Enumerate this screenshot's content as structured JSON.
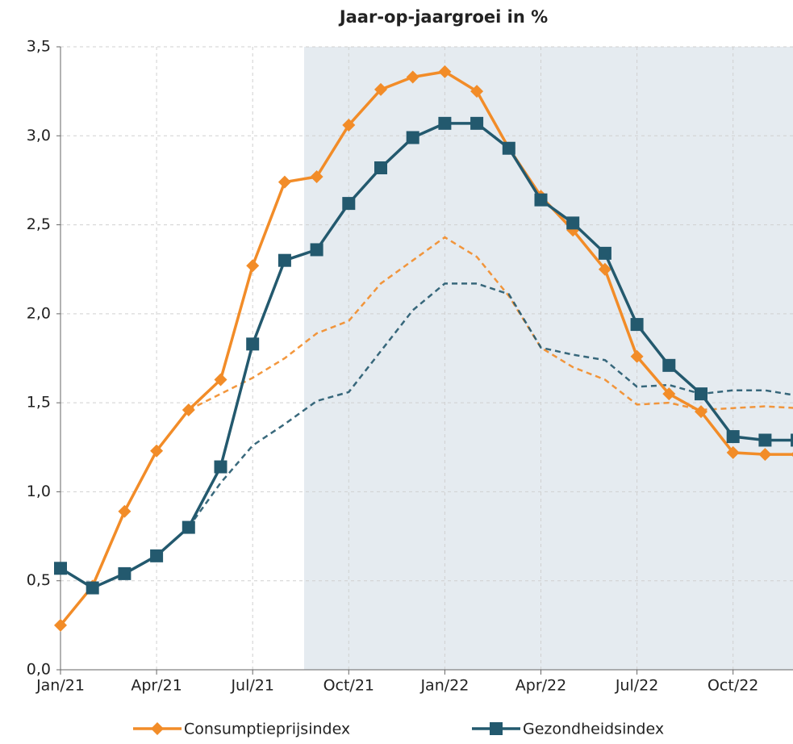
{
  "chart_data": {
    "type": "line",
    "title": "Jaar-op-jaargroei in %",
    "categories": [
      "Jan/21",
      null,
      null,
      "Apr/21",
      null,
      null,
      "Jul/21",
      null,
      null,
      "Oct/21",
      null,
      null,
      "Jan/22",
      null,
      null,
      "Apr/22",
      null,
      null,
      "Jul/22",
      null,
      null,
      "Oct/22",
      null,
      null
    ],
    "series": [
      {
        "name": "Consumptieprijsindex",
        "color": "#f28c28",
        "marker": "diamond",
        "values": [
          0.25,
          0.47,
          0.89,
          1.23,
          1.46,
          1.63,
          2.27,
          2.74,
          2.77,
          3.06,
          3.26,
          3.33,
          3.36,
          3.25,
          2.93,
          2.66,
          2.47,
          2.25,
          1.76,
          1.55,
          1.45,
          1.22,
          1.21,
          1.21
        ]
      },
      {
        "name": "Gezondheidsindex",
        "color": "#23596e",
        "marker": "square",
        "values": [
          0.57,
          0.46,
          0.54,
          0.64,
          0.8,
          1.14,
          1.83,
          2.3,
          2.36,
          2.62,
          2.82,
          2.99,
          3.07,
          3.07,
          2.93,
          2.64,
          2.51,
          2.34,
          1.94,
          1.71,
          1.55,
          1.31,
          1.29,
          1.29
        ]
      },
      {
        "color": "#f28c28",
        "dashed": true,
        "values": [
          null,
          null,
          null,
          null,
          1.46,
          1.55,
          1.64,
          1.75,
          1.89,
          1.96,
          2.17,
          2.3,
          2.43,
          2.32,
          2.1,
          1.81,
          1.7,
          1.63,
          1.49,
          1.5,
          1.46,
          1.47,
          1.48,
          1.47
        ]
      },
      {
        "color": "#23596e",
        "dashed": true,
        "values": [
          null,
          null,
          null,
          null,
          0.8,
          1.05,
          1.26,
          1.38,
          1.51,
          1.56,
          1.79,
          2.02,
          2.17,
          2.17,
          2.11,
          1.81,
          1.77,
          1.74,
          1.59,
          1.6,
          1.55,
          1.57,
          1.57,
          1.54
        ]
      }
    ],
    "ylim": [
      0,
      3.5
    ],
    "yticks": [
      {
        "value": 0,
        "label": "0,0"
      },
      {
        "value": 0.5,
        "label": "0,5"
      },
      {
        "value": 1,
        "label": "1,0"
      },
      {
        "value": 1.5,
        "label": "1,5"
      },
      {
        "value": 2,
        "label": "2,0"
      },
      {
        "value": 2.5,
        "label": "2,5"
      },
      {
        "value": 3,
        "label": "3,0"
      },
      {
        "value": 3.5,
        "label": "3,5"
      }
    ],
    "grid": true,
    "legend": "bottom"
  }
}
